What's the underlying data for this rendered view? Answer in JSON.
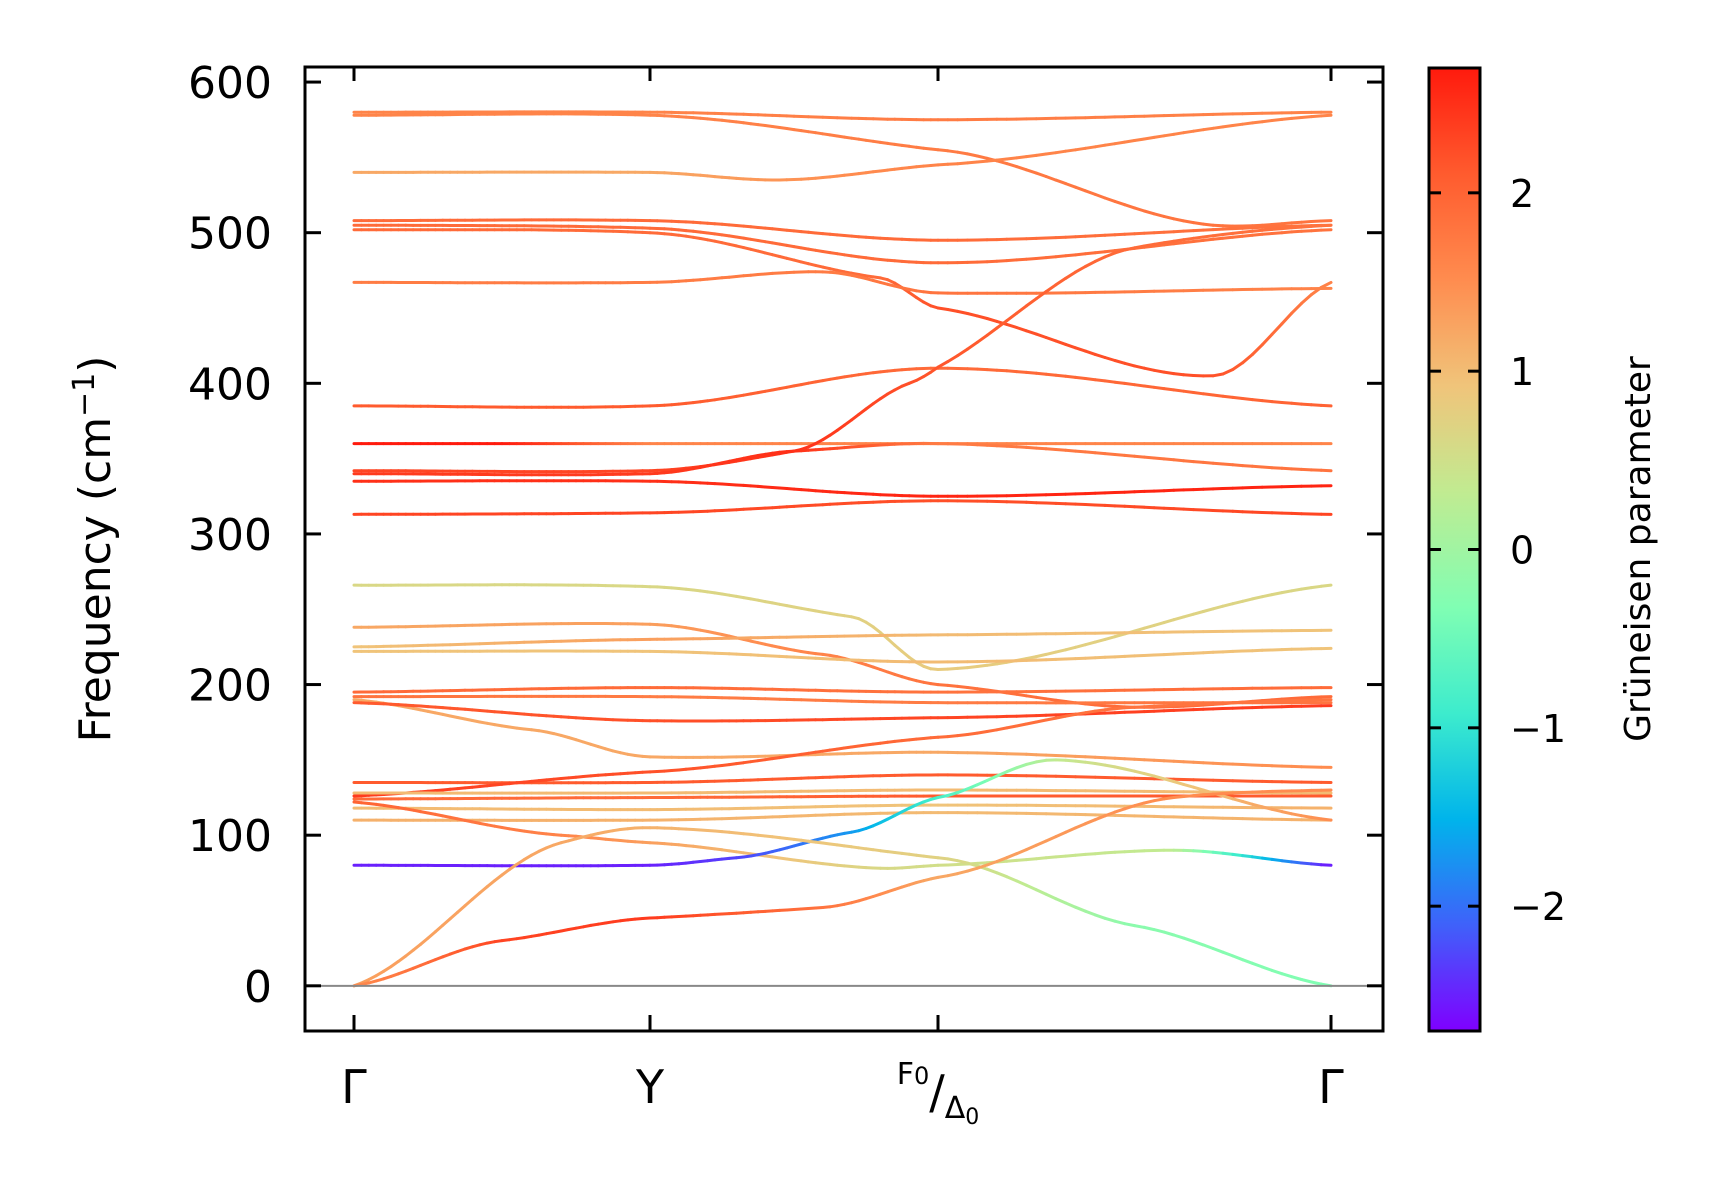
{
  "chart_data": {
    "type": "line",
    "ylabel_main": "Frequency (cm",
    "ylabel_sup": "−1",
    "ylabel_close": ")",
    "ylim": [
      -30,
      610
    ],
    "yticks": [
      0,
      100,
      200,
      300,
      400,
      500,
      600
    ],
    "ytick_labels": [
      "0",
      "100",
      "200",
      "300",
      "400",
      "500",
      "600"
    ],
    "high_symmetry_points": [
      {
        "pos": 0,
        "label": "Γ"
      },
      {
        "pos": 1,
        "label": "Y"
      },
      {
        "pos": 2,
        "label_main": "F",
        "label_main_sub": "0",
        "label_slash": "/",
        "label_second": "Δ",
        "label_second_sub": "0"
      },
      {
        "pos": 3,
        "label": "Γ"
      }
    ],
    "segment_x": [
      0,
      1,
      2,
      3
    ],
    "zero_line": true,
    "colorbar": {
      "label": "Grüneisen parameter",
      "range": [
        -2.7,
        2.7
      ],
      "ticks": [
        2,
        1,
        0,
        -1,
        -2
      ],
      "tick_labels": [
        "2",
        "1",
        "0",
        "−1",
        "−2"
      ],
      "colormap": [
        "#7f00ff",
        "#3f61fa",
        "#00b4eb",
        "#3deccd",
        "#80feb3",
        "#c1eb91",
        "#f0c47a",
        "#ff8c4f",
        "#ff5b2e",
        "#ff1a0d"
      ]
    },
    "bands": [
      {
        "points": [
          [
            0,
            580,
            1.6
          ],
          [
            1,
            580,
            1.6
          ],
          [
            2,
            575,
            1.7
          ],
          [
            3,
            580,
            1.6
          ]
        ]
      },
      {
        "points": [
          [
            0,
            578,
            1.6
          ],
          [
            1,
            578,
            1.6
          ],
          [
            2,
            555,
            1.7
          ],
          [
            2.7,
            505,
            1.8
          ],
          [
            3,
            508,
            1.8
          ]
        ]
      },
      {
        "points": [
          [
            0,
            540,
            1.2
          ],
          [
            1,
            540,
            1.2
          ],
          [
            1.45,
            535,
            1.4
          ],
          [
            2,
            545,
            1.6
          ],
          [
            3,
            578,
            1.6
          ]
        ]
      },
      {
        "points": [
          [
            0,
            508,
            1.9
          ],
          [
            1,
            508,
            1.9
          ],
          [
            2,
            495,
            1.9
          ],
          [
            3,
            505,
            1.8
          ]
        ]
      },
      {
        "points": [
          [
            0,
            505,
            1.9
          ],
          [
            1,
            503,
            1.9
          ],
          [
            2,
            480,
            1.9
          ],
          [
            3,
            502,
            1.8
          ]
        ]
      },
      {
        "points": [
          [
            0,
            502,
            1.9
          ],
          [
            1,
            500,
            1.9
          ],
          [
            1.8,
            470,
            1.9
          ],
          [
            2,
            450,
            2.2
          ],
          [
            2.7,
            405,
            2.2
          ],
          [
            3,
            467,
            1.6
          ]
        ]
      },
      {
        "points": [
          [
            0,
            467,
            1.7
          ],
          [
            1,
            467,
            1.7
          ],
          [
            1.6,
            474,
            1.7
          ],
          [
            2,
            460,
            1.8
          ],
          [
            3,
            463,
            1.6
          ]
        ]
      },
      {
        "points": [
          [
            0,
            385,
            2.1
          ],
          [
            1,
            385,
            2.1
          ],
          [
            2,
            410,
            1.9
          ],
          [
            3,
            385,
            2.0
          ]
        ]
      },
      {
        "points": [
          [
            0,
            360,
            2.7
          ],
          [
            0.5,
            360,
            2.7
          ],
          [
            1,
            360,
            1.6
          ],
          [
            2,
            360,
            1.6
          ],
          [
            3,
            360,
            1.6
          ]
        ]
      },
      {
        "points": [
          [
            0,
            342,
            2.3
          ],
          [
            1,
            342,
            2.3
          ],
          [
            1.5,
            355,
            2.5
          ],
          [
            1.9,
            400,
            2.2
          ],
          [
            2.5,
            490,
            1.9
          ],
          [
            3,
            505,
            1.8
          ]
        ]
      },
      {
        "points": [
          [
            0,
            340,
            2.4
          ],
          [
            1,
            340,
            2.4
          ],
          [
            1.5,
            355,
            2.5
          ],
          [
            2,
            360,
            1.7
          ],
          [
            3,
            342,
            1.8
          ]
        ]
      },
      {
        "points": [
          [
            0,
            335,
            2.5
          ],
          [
            1,
            335,
            2.5
          ],
          [
            2,
            325,
            2.6
          ],
          [
            3,
            332,
            2.6
          ]
        ]
      },
      {
        "points": [
          [
            0,
            313,
            2.3
          ],
          [
            1,
            314,
            2.3
          ],
          [
            2,
            322,
            2.2
          ],
          [
            3,
            313,
            2.3
          ]
        ]
      },
      {
        "points": [
          [
            0,
            266,
            0.6
          ],
          [
            1,
            265,
            0.6
          ],
          [
            1.7,
            245,
            0.7
          ],
          [
            2,
            210,
            0.8
          ],
          [
            3,
            266,
            0.6
          ]
        ]
      },
      {
        "points": [
          [
            0,
            238,
            1.2
          ],
          [
            1,
            240,
            1.3
          ],
          [
            1.6,
            220,
            1.6
          ],
          [
            2,
            200,
            1.8
          ],
          [
            2.5,
            185,
            1.9
          ],
          [
            3,
            192,
            1.9
          ]
        ]
      },
      {
        "points": [
          [
            0,
            225,
            0.9
          ],
          [
            1,
            230,
            1.3
          ],
          [
            2,
            233,
            1.0
          ],
          [
            3,
            236,
            0.9
          ]
        ]
      },
      {
        "points": [
          [
            0,
            222,
            0.9
          ],
          [
            1,
            222,
            0.9
          ],
          [
            2,
            215,
            1.0
          ],
          [
            3,
            224,
            0.9
          ]
        ]
      },
      {
        "points": [
          [
            0,
            195,
            1.9
          ],
          [
            1,
            198,
            1.9
          ],
          [
            2,
            195,
            1.8
          ],
          [
            3,
            198,
            1.9
          ]
        ]
      },
      {
        "points": [
          [
            0,
            192,
            1.8
          ],
          [
            1,
            192,
            1.7
          ],
          [
            2,
            188,
            1.7
          ],
          [
            3,
            188,
            1.8
          ]
        ]
      },
      {
        "points": [
          [
            0,
            190,
            1.2
          ],
          [
            0.6,
            170,
            1.2
          ],
          [
            1,
            152,
            1.2
          ],
          [
            2,
            155,
            1.2
          ],
          [
            3,
            145,
            1.5
          ]
        ]
      },
      {
        "points": [
          [
            0,
            188,
            2.1
          ],
          [
            1,
            176,
            2.2
          ],
          [
            2,
            178,
            2.3
          ],
          [
            3,
            186,
            2.4
          ]
        ]
      },
      {
        "points": [
          [
            0,
            135,
            2.1
          ],
          [
            1,
            135,
            2.1
          ],
          [
            2,
            140,
            2.1
          ],
          [
            3,
            135,
            2.1
          ]
        ]
      },
      {
        "points": [
          [
            0,
            126,
            2.4
          ],
          [
            1,
            142,
            2.2
          ],
          [
            2,
            165,
            1.9
          ],
          [
            2.5,
            185,
            1.8
          ],
          [
            3,
            190,
            1.8
          ]
        ]
      },
      {
        "points": [
          [
            0,
            124,
            1.9
          ],
          [
            1,
            125,
            1.9
          ],
          [
            2,
            126,
            2.1
          ],
          [
            3,
            126,
            2.1
          ]
        ]
      },
      {
        "points": [
          [
            0,
            128,
            1.0
          ],
          [
            1,
            128,
            1.0
          ],
          [
            2,
            130,
            1.0
          ],
          [
            3,
            128,
            1.0
          ]
        ]
      },
      {
        "points": [
          [
            0,
            118,
            1.0
          ],
          [
            1,
            117,
            1.0
          ],
          [
            2,
            120,
            0.9
          ],
          [
            3,
            118,
            1.1
          ]
        ]
      },
      {
        "points": [
          [
            0,
            110,
            1.1
          ],
          [
            1,
            110,
            1.1
          ],
          [
            2,
            115,
            1.0
          ],
          [
            3,
            110,
            1.1
          ]
        ]
      },
      {
        "points": [
          [
            0,
            122,
            2.0
          ],
          [
            0.7,
            100,
            1.6
          ],
          [
            1,
            95,
            1.3
          ],
          [
            1.8,
            78,
            0.6
          ],
          [
            2,
            80,
            0.5
          ],
          [
            2.6,
            90,
            0.3
          ],
          [
            3,
            80,
            -2.6
          ]
        ]
      },
      {
        "points": [
          [
            0,
            80,
            -2.5
          ],
          [
            1,
            80,
            -2.5
          ],
          [
            1.3,
            85,
            -2.3
          ],
          [
            1.7,
            102,
            -1.7
          ],
          [
            2,
            125,
            -0.8
          ],
          [
            2.3,
            150,
            0.3
          ],
          [
            3,
            110,
            1.5
          ]
        ]
      },
      {
        "points": [
          [
            0,
            0,
            1.3
          ],
          [
            0.7,
            95,
            1.2
          ],
          [
            1,
            105,
            1.1
          ],
          [
            2,
            85,
            0.7
          ],
          [
            2.5,
            40,
            -0.2
          ],
          [
            3,
            0,
            -0.3
          ]
        ]
      },
      {
        "points": [
          [
            0,
            0,
            1.5
          ],
          [
            0.5,
            30,
            2.3
          ],
          [
            1,
            45,
            2.4
          ],
          [
            1.6,
            52,
            1.8
          ],
          [
            2,
            72,
            1.2
          ],
          [
            2.6,
            125,
            1.5
          ],
          [
            3,
            130,
            1.5
          ]
        ]
      }
    ]
  }
}
